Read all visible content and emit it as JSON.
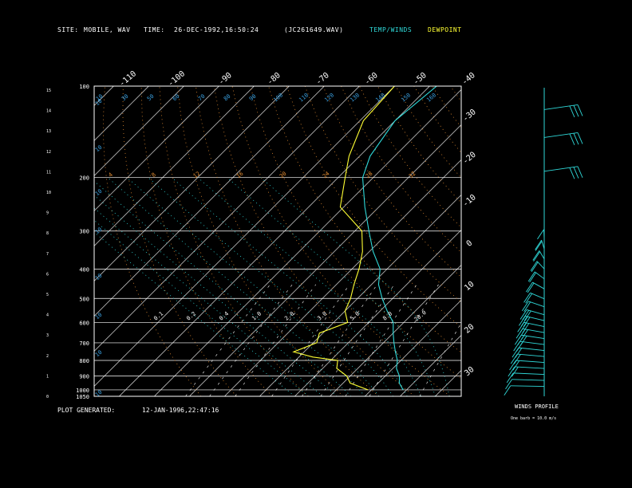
{
  "header": {
    "site_label": "SITE:",
    "site_value": "MOBILE, WAV",
    "time_label": "TIME:",
    "time_value": "26-DEC-1992,16:50:24",
    "file_id": "(JC261649.WAV)",
    "temp_winds_label": "TEMP/WINDS",
    "dewpoint_label": "DEWPOINT"
  },
  "footer": {
    "generated_label": "PLOT GENERATED:",
    "generated_value": "12-JAN-1996,22:47:16"
  },
  "winds_profile": {
    "title": "WINDS PROFILE",
    "note": "One barb = 10.0 m/s"
  },
  "colors": {
    "temperature": "#2fd8d8",
    "dewpoint": "#ffff33",
    "isobars": "#ffffff",
    "isotherms": "#ffffff",
    "dry_adiabats": "#e08a30",
    "moist_adiabats": "#2fd8d8",
    "mixing_ratio": "#ffffff",
    "dry_adiabat_labels": "#e08a30",
    "moist_labels": "#3aa0e0"
  },
  "chart_data": {
    "type": "line",
    "title": "",
    "xlabel": "",
    "ylabel": "",
    "pressure_labels": [
      "100",
      "200",
      "300",
      "400",
      "500",
      "600",
      "700",
      "800",
      "900",
      "1000",
      "1050"
    ],
    "height_ticks_km": [
      "0",
      "1",
      "2",
      "3",
      "4",
      "5",
      "6",
      "7",
      "8",
      "9",
      "10",
      "11",
      "12",
      "13",
      "14",
      "15"
    ],
    "top_temp_labels": [
      "-110",
      "-100",
      "-90",
      "-80",
      "-70",
      "-60",
      "-50",
      "-40"
    ],
    "right_temp_labels": [
      "-30",
      "-20",
      "-10",
      "0",
      "10",
      "20",
      "30"
    ],
    "dry_adiabat_labels": [
      "4",
      "8",
      "12",
      "16",
      "20",
      "24",
      "28",
      "32"
    ],
    "moist_adiabat_labels_top": [
      "10",
      "30",
      "50",
      "60",
      "70",
      "80",
      "90",
      "100",
      "110",
      "120",
      "130",
      "140",
      "150",
      "160"
    ],
    "moist_adiabat_labels_left": [
      "10",
      "10",
      "10",
      "10",
      "10",
      "10",
      "10",
      "10"
    ],
    "mixing_ratio_labels": [
      "0.1",
      "0.2",
      "0.4",
      "1.0",
      "2.0",
      "3.0",
      "5.0",
      "8.0",
      "20.0"
    ],
    "series": [
      {
        "name": "TEMP/WINDS",
        "points": [
          {
            "p": 100,
            "t": -58
          },
          {
            "p": 130,
            "t": -60
          },
          {
            "p": 170,
            "t": -57
          },
          {
            "p": 200,
            "t": -53
          },
          {
            "p": 250,
            "t": -44
          },
          {
            "p": 300,
            "t": -36
          },
          {
            "p": 350,
            "t": -29
          },
          {
            "p": 400,
            "t": -22
          },
          {
            "p": 450,
            "t": -18
          },
          {
            "p": 500,
            "t": -13
          },
          {
            "p": 550,
            "t": -8
          },
          {
            "p": 600,
            "t": -3
          },
          {
            "p": 650,
            "t": 0
          },
          {
            "p": 700,
            "t": 3
          },
          {
            "p": 750,
            "t": 6
          },
          {
            "p": 800,
            "t": 9
          },
          {
            "p": 850,
            "t": 11
          },
          {
            "p": 900,
            "t": 14
          },
          {
            "p": 950,
            "t": 16
          },
          {
            "p": 1000,
            "t": 19
          }
        ]
      },
      {
        "name": "DEWPOINT",
        "points": [
          {
            "p": 100,
            "t": -70
          },
          {
            "p": 130,
            "t": -69
          },
          {
            "p": 170,
            "t": -63
          },
          {
            "p": 200,
            "t": -58
          },
          {
            "p": 250,
            "t": -51
          },
          {
            "p": 300,
            "t": -38
          },
          {
            "p": 350,
            "t": -32
          },
          {
            "p": 400,
            "t": -28
          },
          {
            "p": 450,
            "t": -25
          },
          {
            "p": 500,
            "t": -22
          },
          {
            "p": 550,
            "t": -20
          },
          {
            "p": 600,
            "t": -16
          },
          {
            "p": 650,
            "t": -21
          },
          {
            "p": 700,
            "t": -19
          },
          {
            "p": 750,
            "t": -23
          },
          {
            "p": 780,
            "t": -16
          },
          {
            "p": 800,
            "t": -8
          },
          {
            "p": 850,
            "t": -6
          },
          {
            "p": 900,
            "t": -1
          },
          {
            "p": 950,
            "t": 2
          },
          {
            "p": 1000,
            "t": 9
          }
        ]
      }
    ],
    "winds_profile_levels": [
      {
        "h": 14.4,
        "dir": 20,
        "speed": 25
      },
      {
        "h": 13.0,
        "dir": 25,
        "speed": 25
      },
      {
        "h": 11.3,
        "dir": 30,
        "speed": 25
      },
      {
        "h": 7.9,
        "dir": 220,
        "speed": 10
      },
      {
        "h": 7.4,
        "dir": 225,
        "speed": 15
      },
      {
        "h": 6.9,
        "dir": 230,
        "speed": 15
      },
      {
        "h": 6.4,
        "dir": 235,
        "speed": 15
      },
      {
        "h": 5.9,
        "dir": 240,
        "speed": 20
      },
      {
        "h": 5.4,
        "dir": 240,
        "speed": 20
      },
      {
        "h": 4.9,
        "dir": 245,
        "speed": 20
      },
      {
        "h": 4.5,
        "dir": 250,
        "speed": 20
      },
      {
        "h": 4.1,
        "dir": 255,
        "speed": 25
      },
      {
        "h": 3.8,
        "dir": 255,
        "speed": 25
      },
      {
        "h": 3.5,
        "dir": 260,
        "speed": 25
      },
      {
        "h": 3.2,
        "dir": 260,
        "speed": 25
      },
      {
        "h": 2.9,
        "dir": 265,
        "speed": 25
      },
      {
        "h": 2.6,
        "dir": 265,
        "speed": 20
      },
      {
        "h": 2.3,
        "dir": 270,
        "speed": 20
      },
      {
        "h": 2.0,
        "dir": 275,
        "speed": 20
      },
      {
        "h": 1.7,
        "dir": 280,
        "speed": 15
      },
      {
        "h": 1.4,
        "dir": 285,
        "speed": 15
      },
      {
        "h": 1.1,
        "dir": 290,
        "speed": 10
      },
      {
        "h": 0.8,
        "dir": 295,
        "speed": 10
      },
      {
        "h": 0.5,
        "dir": 300,
        "speed": 10
      }
    ]
  }
}
